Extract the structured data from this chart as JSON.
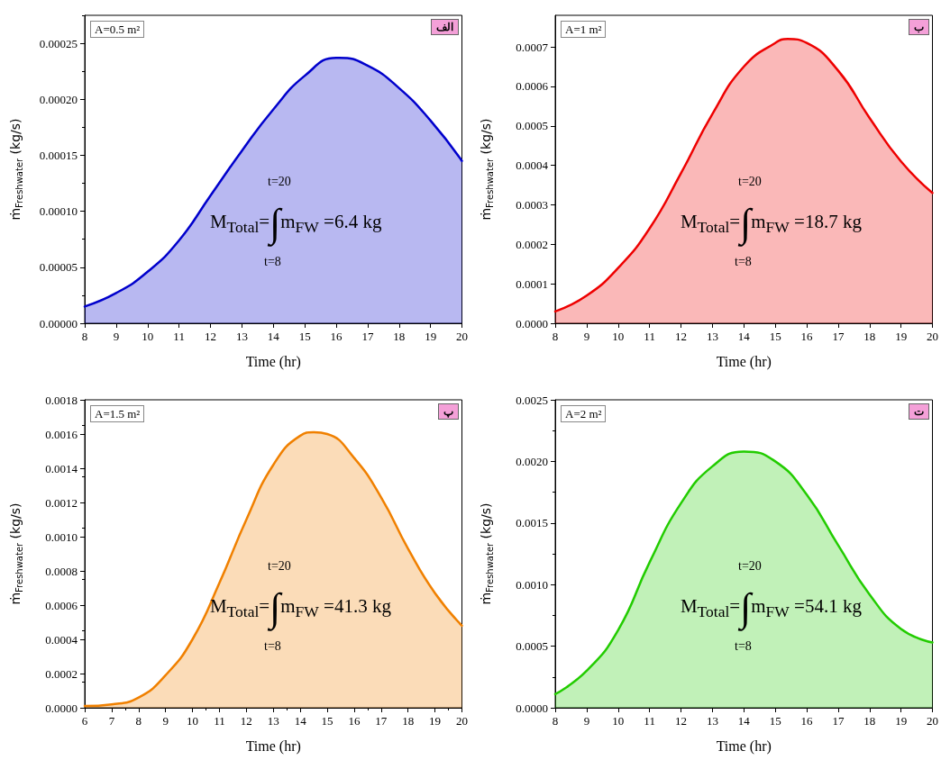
{
  "chart_data": [
    {
      "type": "area",
      "xlabel": "Time (hr)",
      "ylabel": "ṁ$_{Freshwater}$ (kg/s)",
      "annotations": [
        "A=0.5 m²",
        "الف",
        "t=20",
        "M$_{Total}$=∫m$_{FW}$ =6.4 kg",
        "t=8"
      ],
      "x": [
        8,
        9,
        10,
        11,
        12,
        13,
        14,
        15,
        16,
        16.1,
        17,
        18,
        19,
        20
      ],
      "series": [
        {
          "color": "#0000cc",
          "values": [
            1.5e-05,
            2.7e-05,
            4.6e-05,
            7.4e-05,
            0.000114,
            0.000154,
            0.000191,
            0.000221,
            0.000237,
            0.000237,
            0.00023,
            0.00021,
            0.000181,
            0.000145
          ]
        }
      ],
      "xlim": [
        8,
        20
      ],
      "xticks": [
        8,
        9,
        10,
        11,
        12,
        13,
        14,
        15,
        16,
        17,
        18,
        19,
        20
      ],
      "ylim": [
        0,
        0.000275
      ],
      "yticks": [
        {
          "value": 0,
          "label": "0.00000"
        },
        {
          "value": 5e-05,
          "label": "0.00005"
        },
        {
          "value": 0.0001,
          "label": "0.00010"
        },
        {
          "value": 0.00015,
          "label": "0.00015"
        },
        {
          "value": 0.0002,
          "label": "0.00020"
        },
        {
          "value": 0.00025,
          "label": "0.00025"
        }
      ],
      "grid": false,
      "marker": "none",
      "line_style": "solid"
    },
    {
      "type": "area",
      "xlabel": "Time (hr)",
      "ylabel": "ṁ$_{Freshwater}$ (kg/s)",
      "annotations": [
        "A=1 m²",
        "ب",
        "t=20",
        "M$_{Total}$=∫m$_{FW}$ =18.7 kg",
        "t=8"
      ],
      "x": [
        8,
        9,
        10,
        11,
        12,
        13,
        14,
        15,
        15.4,
        16,
        17,
        18,
        19,
        20
      ],
      "series": [
        {
          "color": "#ee0000",
          "values": [
            3e-05,
            7e-05,
            0.00014,
            0.00024,
            0.00038,
            0.00053,
            0.00065,
            0.00071,
            0.00072,
            0.00071,
            0.00064,
            0.00052,
            0.00041,
            0.00033
          ]
        }
      ],
      "xlim": [
        8,
        20
      ],
      "xticks": [
        8,
        9,
        10,
        11,
        12,
        13,
        14,
        15,
        16,
        17,
        18,
        19,
        20
      ],
      "ylim": [
        0,
        0.00078
      ],
      "yticks": [
        {
          "value": 0,
          "label": "0.0000"
        },
        {
          "value": 0.0001,
          "label": "0.0001"
        },
        {
          "value": 0.0002,
          "label": "0.0002"
        },
        {
          "value": 0.0003,
          "label": "0.0003"
        },
        {
          "value": 0.0004,
          "label": "0.0004"
        },
        {
          "value": 0.0005,
          "label": "0.0005"
        },
        {
          "value": 0.0006,
          "label": "0.0006"
        },
        {
          "value": 0.0007,
          "label": "0.0007"
        }
      ],
      "grid": false,
      "marker": "none",
      "line_style": "solid"
    },
    {
      "type": "area",
      "xlabel": "Time (hr)",
      "ylabel": "ṁ$_{Freshwater}$ (kg/s)",
      "annotations": [
        "A=1.5 m²",
        "پ",
        "t=20",
        "M$_{Total}$=∫m$_{FW}$ =41.3 kg",
        "t=8"
      ],
      "x": [
        6,
        7,
        8,
        9,
        10,
        11,
        12,
        13,
        14,
        14.5,
        15,
        16,
        17,
        18,
        19,
        20
      ],
      "series": [
        {
          "color": "#f08000",
          "values": [
            1e-05,
            2e-05,
            6e-05,
            0.00019,
            0.0004,
            0.00073,
            0.0011,
            0.00142,
            0.00159,
            0.00161,
            0.0016,
            0.00146,
            0.00123,
            0.00093,
            0.00067,
            0.00048
          ]
        }
      ],
      "xlim": [
        6,
        20
      ],
      "xticks": [
        6,
        7,
        8,
        9,
        10,
        11,
        12,
        13,
        14,
        15,
        16,
        17,
        18,
        19,
        20
      ],
      "ylim": [
        0,
        0.0018
      ],
      "yticks": [
        {
          "value": 0,
          "label": "0.0000"
        },
        {
          "value": 0.0002,
          "label": "0.0002"
        },
        {
          "value": 0.0004,
          "label": "0.0004"
        },
        {
          "value": 0.0006,
          "label": "0.0006"
        },
        {
          "value": 0.0008,
          "label": "0.0008"
        },
        {
          "value": 0.001,
          "label": "0.0010"
        },
        {
          "value": 0.0012,
          "label": "0.0012"
        },
        {
          "value": 0.0014,
          "label": "0.0014"
        },
        {
          "value": 0.0016,
          "label": "0.0016"
        },
        {
          "value": 0.0018,
          "label": "0.0018"
        }
      ],
      "grid": false,
      "marker": "none",
      "line_style": "solid"
    },
    {
      "type": "area",
      "xlabel": "Time (hr)",
      "ylabel": "ṁ$_{Freshwater}$ (kg/s)",
      "annotations": [
        "A=2 m²",
        "ت",
        "t=20",
        "M$_{Total}$=∫m$_{FW}$ =54.1 kg",
        "t=8"
      ],
      "x": [
        8,
        9,
        10,
        11,
        12,
        13,
        14,
        15,
        16,
        17,
        18,
        19,
        20
      ],
      "series": [
        {
          "color": "#22cc00",
          "values": [
            0.00011,
            0.0003,
            0.00063,
            0.00118,
            0.00166,
            0.00196,
            0.00208,
            0.002,
            0.00173,
            0.00132,
            0.00092,
            0.00064,
            0.00053
          ]
        }
      ],
      "xlim": [
        8,
        20
      ],
      "xticks": [
        8,
        9,
        10,
        11,
        12,
        13,
        14,
        15,
        16,
        17,
        18,
        19,
        20
      ],
      "ylim": [
        0,
        0.0025
      ],
      "yticks": [
        {
          "value": 0,
          "label": "0.0000"
        },
        {
          "value": 0.0005,
          "label": "0.0005"
        },
        {
          "value": 0.001,
          "label": "0.0010"
        },
        {
          "value": 0.0015,
          "label": "0.0015"
        },
        {
          "value": 0.002,
          "label": "0.0020"
        },
        {
          "value": 0.0025,
          "label": "0.0025"
        }
      ],
      "grid": false,
      "marker": "none",
      "line_style": "solid"
    }
  ]
}
